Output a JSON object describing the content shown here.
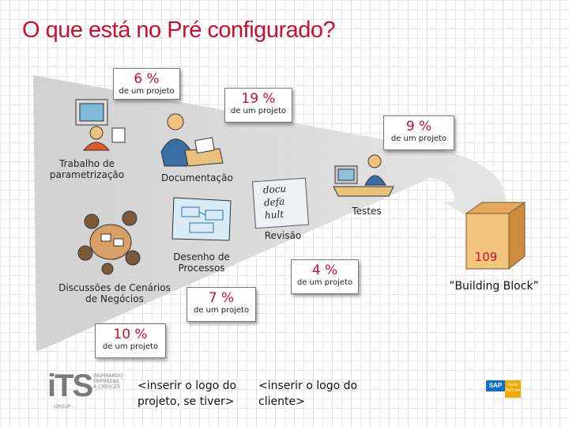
{
  "title": "O que está no Pré configurado?",
  "bubbles": [
    {
      "pct": "6 %",
      "sub": "de um projeto"
    },
    {
      "pct": "19 %",
      "sub": "de um projeto"
    },
    {
      "pct": "9 %",
      "sub": "de um projeto"
    },
    {
      "pct": "4 %",
      "sub": "de um projeto"
    },
    {
      "pct": "7 %",
      "sub": "de um projeto"
    },
    {
      "pct": "10 %",
      "sub": "de um projeto"
    }
  ],
  "labels": {
    "trabalho": "Trabalho de\nparametrização",
    "documentacao": "Documentação",
    "testes": "Testes",
    "revisao": "Revisão",
    "desenho": "Desenho de\nProcessos",
    "discussoes": "Discussões de Cenários\nde Negócios"
  },
  "box": {
    "number": "109",
    "caption": "”Building Block”"
  },
  "doc_words": [
    "docu",
    "defa",
    "hult"
  ],
  "footer": {
    "logo_projeto": "<inserir o logo do\nprojeto, se tiver>",
    "logo_cliente": "<inserir o logo do\ncliente>",
    "its_logo": "iTS",
    "its_tagline": "INSPIRANDO\nEMPRESAS\nA CRESCER",
    "its_group": "GROUP",
    "sap_logo": "SAP",
    "sap_badge": "Gold\nPartner"
  },
  "colors": {
    "accent": "#c8102e",
    "arrow": "#d9d9d9",
    "box": "#f2c47e"
  }
}
